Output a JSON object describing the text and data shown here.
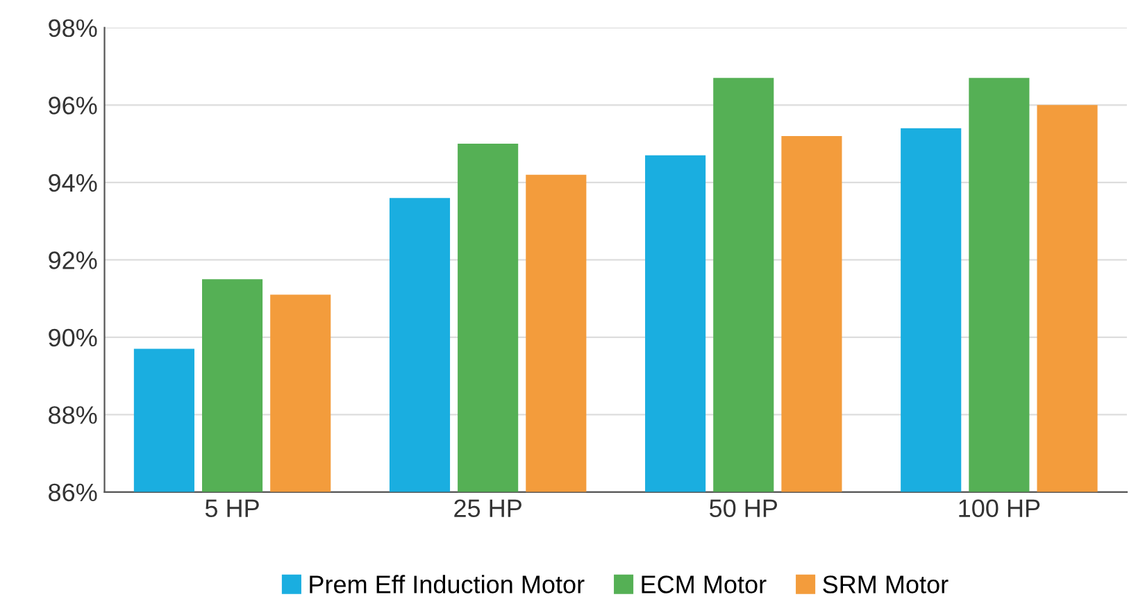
{
  "chart_data": {
    "type": "bar",
    "categories": [
      "5 HP",
      "25 HP",
      "50 HP",
      "100 HP"
    ],
    "series": [
      {
        "name": "Prem Eff Induction Motor",
        "color": "#1aaee0",
        "values": [
          89.7,
          93.6,
          94.7,
          95.4
        ]
      },
      {
        "name": "ECM Motor",
        "color": "#55b055",
        "values": [
          91.5,
          95.0,
          96.7,
          96.7
        ]
      },
      {
        "name": "SRM Motor",
        "color": "#f39c3c",
        "values": [
          91.1,
          94.2,
          95.2,
          96.0
        ]
      }
    ],
    "ylim": [
      86,
      98
    ],
    "yticks": [
      {
        "value": 86,
        "label": "86%"
      },
      {
        "value": 88,
        "label": "88%"
      },
      {
        "value": 90,
        "label": "90%"
      },
      {
        "value": 92,
        "label": "92%"
      },
      {
        "value": 94,
        "label": "94%"
      },
      {
        "value": 96,
        "label": "96%"
      },
      {
        "value": 98,
        "label": "98%"
      }
    ],
    "grid": "y",
    "legend": "bottom"
  }
}
